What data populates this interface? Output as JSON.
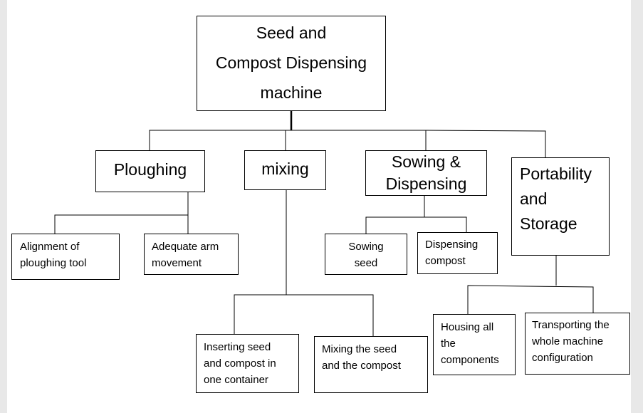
{
  "root": {
    "label": "Seed and\nCompost Dispensing\nmachine"
  },
  "ploughing": {
    "label": "Ploughing",
    "children": [
      "Alignment of\nploughing tool",
      "Adequate  arm\nmovement"
    ]
  },
  "mixing": {
    "label": "mixing",
    "children": [
      "Inserting seed\nand compost in\none container",
      "Mixing the seed\nand the compost"
    ]
  },
  "sowing": {
    "label": "Sowing &\nDispensing",
    "children": [
      "Sowing\nseed",
      "Dispensing\ncompost"
    ]
  },
  "portability": {
    "label": "Portability\nand\nStorage",
    "children": [
      "Housing all\nthe\ncomponents",
      "Transporting the\nwhole machine\nconfiguration"
    ]
  }
}
